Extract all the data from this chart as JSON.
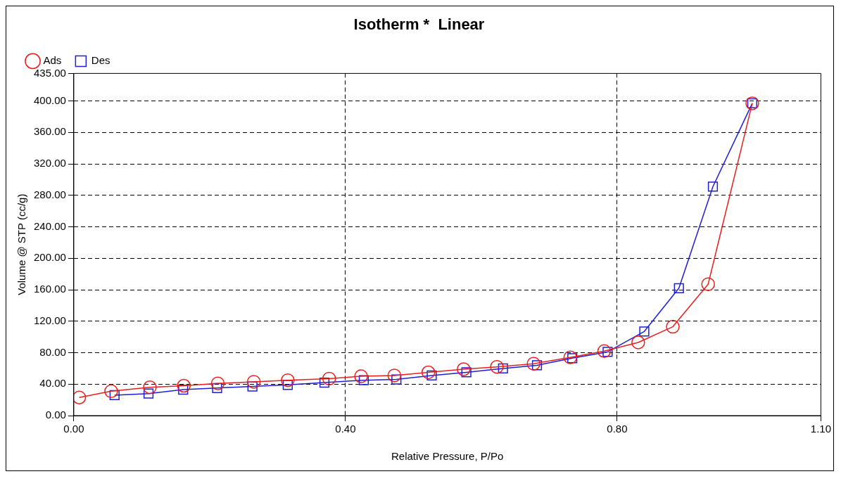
{
  "chart_data": {
    "type": "line",
    "title": "Isotherm *  Linear",
    "xlabel": "Relative Pressure, P/Po",
    "ylabel": "Volume @ STP (cc/g)",
    "xlim": [
      0,
      1.1
    ],
    "xticks": [
      {
        "value": 0,
        "label": "0.00"
      },
      {
        "value": 0.4,
        "label": "0.40"
      },
      {
        "value": 0.8,
        "label": "0.80"
      },
      {
        "value": 1.1,
        "label": "1.10"
      }
    ],
    "ylim": [
      0,
      435
    ],
    "yticks": [
      {
        "value": 0,
        "label": "0.00"
      },
      {
        "value": 40,
        "label": "40.00"
      },
      {
        "value": 80,
        "label": "80.00"
      },
      {
        "value": 120,
        "label": "120.00"
      },
      {
        "value": 160,
        "label": "160.00"
      },
      {
        "value": 200,
        "label": "200.00"
      },
      {
        "value": 240,
        "label": "240.00"
      },
      {
        "value": 280,
        "label": "280.00"
      },
      {
        "value": 320,
        "label": "320.00"
      },
      {
        "value": 360,
        "label": "360.00"
      },
      {
        "value": 400,
        "label": "400.00"
      },
      {
        "value": 435,
        "label": "435.00"
      }
    ],
    "grid": true,
    "legend": "top left",
    "line_style": "solid",
    "series": [
      {
        "name": "Ads",
        "color": "#e81e1e",
        "marker": "circle",
        "x": [
          0.008,
          0.055,
          0.112,
          0.162,
          0.212,
          0.265,
          0.315,
          0.376,
          0.423,
          0.472,
          0.522,
          0.574,
          0.623,
          0.677,
          0.731,
          0.781,
          0.831,
          0.882,
          0.934,
          0.999
        ],
        "values": [
          23,
          31,
          36,
          38,
          41,
          43,
          45,
          47,
          50,
          51,
          55,
          59,
          62,
          66,
          74,
          82,
          93,
          113,
          167,
          397
        ]
      },
      {
        "name": "Des",
        "color": "#1e1ed2",
        "marker": "square",
        "x": [
          0.06,
          0.11,
          0.161,
          0.211,
          0.263,
          0.315,
          0.369,
          0.427,
          0.475,
          0.527,
          0.578,
          0.632,
          0.682,
          0.734,
          0.786,
          0.84,
          0.891,
          0.941,
          0.999
        ],
        "values": [
          26,
          28,
          33,
          35,
          37,
          39,
          42,
          45,
          46,
          51,
          55,
          60,
          64,
          73,
          81,
          107,
          162,
          291,
          397
        ]
      }
    ]
  }
}
